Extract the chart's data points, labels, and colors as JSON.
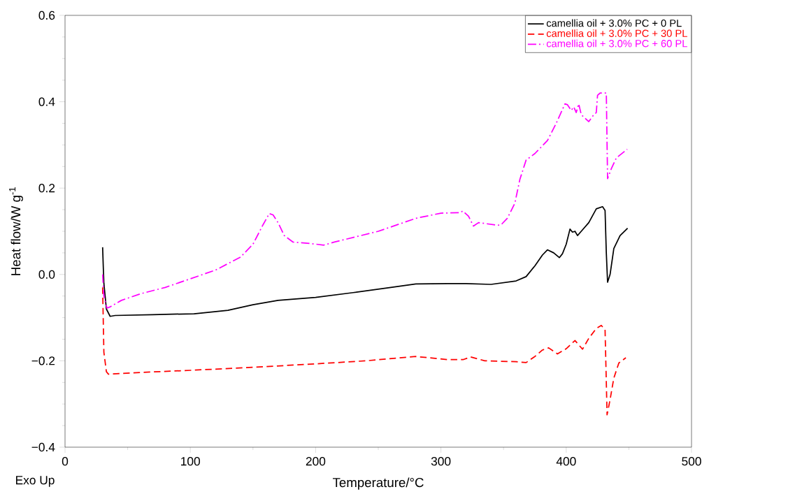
{
  "chart_data": {
    "type": "line",
    "xlabel": "Temperature/°C",
    "ylabel": "Heat flow/W g$^{-1}$",
    "annotations": [
      "Exo Up"
    ],
    "xlim": [
      0,
      500
    ],
    "xticks": [
      0,
      100,
      200,
      300,
      400,
      500
    ],
    "ylim": [
      -0.4,
      0.6
    ],
    "yticks": [
      {
        "value": -0.4,
        "label": "−0.4"
      },
      {
        "value": -0.2,
        "label": "−0.2"
      },
      {
        "value": 0.0,
        "label": "0.0"
      },
      {
        "value": 0.2,
        "label": "0.2"
      },
      {
        "value": 0.4,
        "label": "0.4"
      },
      {
        "value": 0.6,
        "label": "0.6"
      }
    ],
    "legend": "top right",
    "grid": false,
    "series": [
      {
        "name": "camellia oil + 3.0% PC + 0 PL",
        "color": "#000000",
        "line_style": "solid",
        "x": [
          30,
          30.5,
          31,
          33,
          36,
          40,
          70,
          103,
          130,
          150,
          170,
          200,
          230,
          260,
          280,
          305,
          320,
          340,
          360,
          368,
          375,
          381,
          385,
          390,
          394.5,
          397,
          400,
          403,
          405,
          407,
          409,
          412,
          418,
          424,
          429,
          431,
          432,
          433,
          435,
          438,
          443,
          449
        ],
        "values": [
          0.063,
          0.02,
          -0.02,
          -0.08,
          -0.097,
          -0.095,
          -0.093,
          -0.091,
          -0.083,
          -0.07,
          -0.06,
          -0.053,
          -0.042,
          -0.03,
          -0.022,
          -0.021,
          -0.021,
          -0.023,
          -0.015,
          -0.005,
          0.02,
          0.045,
          0.057,
          0.05,
          0.039,
          0.048,
          0.07,
          0.105,
          0.098,
          0.1,
          0.09,
          0.1,
          0.12,
          0.152,
          0.157,
          0.148,
          0.05,
          -0.018,
          0.0,
          0.06,
          0.09,
          0.107
        ]
      },
      {
        "name": "camellia oil + 3.0% PC + 30 PL",
        "color": "#ff0000",
        "line_style": "dashed",
        "x": [
          30,
          31,
          33,
          34.6,
          60,
          100,
          150,
          200,
          240,
          280,
          305,
          318,
          323.7,
          335,
          360,
          368,
          375,
          381,
          386,
          393,
          400,
          407,
          413,
          418,
          424,
          428,
          431,
          432,
          432.6,
          435,
          438,
          442,
          447.6
        ],
        "values": [
          -0.03,
          -0.18,
          -0.225,
          -0.231,
          -0.227,
          -0.222,
          -0.215,
          -0.207,
          -0.2,
          -0.19,
          -0.197,
          -0.197,
          -0.191,
          -0.2,
          -0.202,
          -0.204,
          -0.19,
          -0.175,
          -0.17,
          -0.184,
          -0.172,
          -0.153,
          -0.173,
          -0.148,
          -0.125,
          -0.118,
          -0.128,
          -0.25,
          -0.325,
          -0.29,
          -0.24,
          -0.205,
          -0.193
        ]
      },
      {
        "name": "camellia oil + 3.0% PC + 60 PL",
        "color": "#ff00ff",
        "line_style": "dashdot",
        "x": [
          30,
          31,
          33.5,
          36,
          45,
          60,
          80,
          100,
          120,
          140,
          150,
          158,
          163,
          166,
          170,
          175,
          182,
          195,
          206.5,
          215,
          250,
          280,
          300,
          315,
          317.5,
          322,
          326,
          330,
          345,
          348,
          353,
          359,
          363,
          368,
          375,
          385,
          392,
          399,
          401,
          404,
          406,
          408,
          410,
          412,
          418,
          422,
          424,
          425,
          427,
          432,
          433,
          436,
          440,
          448.7
        ],
        "values": [
          0.0,
          -0.05,
          -0.078,
          -0.075,
          -0.06,
          -0.045,
          -0.03,
          -0.01,
          0.01,
          0.04,
          0.07,
          0.115,
          0.141,
          0.138,
          0.12,
          0.09,
          0.075,
          0.072,
          0.068,
          0.075,
          0.1,
          0.13,
          0.142,
          0.143,
          0.147,
          0.135,
          0.112,
          0.12,
          0.114,
          0.115,
          0.13,
          0.165,
          0.22,
          0.265,
          0.28,
          0.31,
          0.35,
          0.395,
          0.393,
          0.38,
          0.388,
          0.375,
          0.395,
          0.37,
          0.354,
          0.37,
          0.375,
          0.415,
          0.42,
          0.42,
          0.222,
          0.245,
          0.27,
          0.29
        ]
      }
    ]
  }
}
